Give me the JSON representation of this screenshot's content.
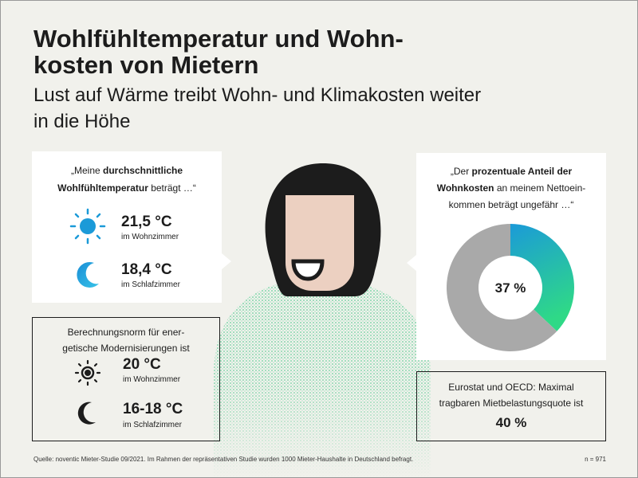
{
  "header": {
    "title": [
      "Wohlfühltemperatur und Wohn-",
      "kosten von Mietern"
    ],
    "subtitle": [
      "Lust auf Wärme treibt Wohn- und Klimakosten weiter",
      "in die Höhe"
    ]
  },
  "comfort_box": {
    "quote": [
      [
        {
          "text": "„Meine ",
          "bold": false
        },
        {
          "text": "durchschnittliche",
          "bold": true
        }
      ],
      [
        {
          "text": "Wohlfühltemperatur",
          "bold": true
        },
        {
          "text": " beträgt …“",
          "bold": false
        }
      ]
    ],
    "items": [
      {
        "value": "21,5 °C",
        "room": "im Wohnzimmer"
      },
      {
        "value": "18,4 °C",
        "room": "im Schlafzimmer"
      }
    ]
  },
  "norm_box": {
    "text": [
      "Berechnungsnorm für ener-",
      "getische Modernisierungen ist"
    ],
    "items": [
      {
        "value": "20 °C",
        "room": "im Wohnzimmer"
      },
      {
        "value": "16-18 °C",
        "room": "im Schlafzimmer"
      }
    ]
  },
  "rent_box": {
    "quote": [
      [
        {
          "text": "„Der ",
          "bold": false
        },
        {
          "text": "prozentuale Anteil der",
          "bold": true
        }
      ],
      [
        {
          "text": "Wohnkosten",
          "bold": true
        },
        {
          "text": " an meinem Nettoein-",
          "bold": false
        }
      ],
      [
        {
          "text": "kommen beträgt ungefähr …“",
          "bold": false
        }
      ]
    ]
  },
  "chart_data": {
    "type": "pie",
    "donut": true,
    "values": [
      37,
      63
    ],
    "value_labels": [
      "37 %",
      null
    ],
    "colors": [
      "#1b9ad8",
      "#a9a9a9"
    ]
  },
  "eurostat_box": {
    "text": [
      "Eurostat und OECD: Maximal",
      "tragbaren Mietbelastungsquote ist"
    ],
    "value": "40 %"
  },
  "footer": {
    "source": "Quelle: noventic Mieter-Studie 09/2021. Im Rahmen der repräsentativen Studie wurden 1000 Mieter-Haushalte in Deutschland befragt.",
    "n": "n = 971"
  }
}
